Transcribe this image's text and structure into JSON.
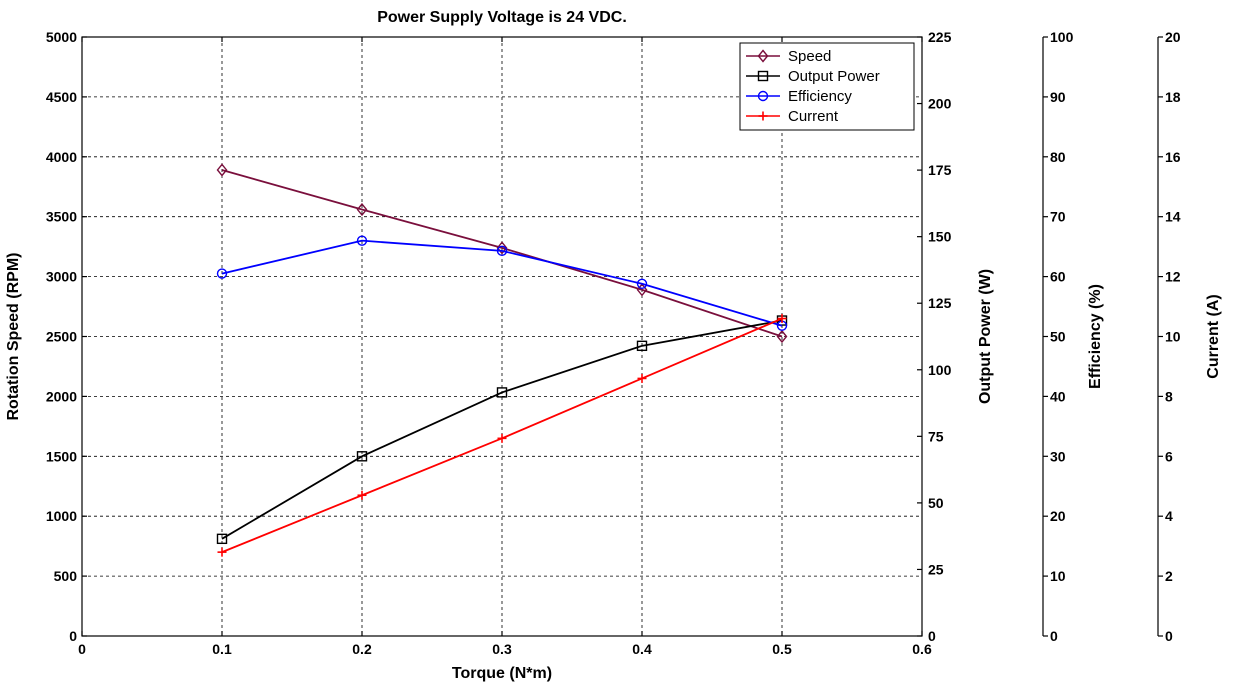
{
  "chart_data": {
    "type": "line",
    "title": "Power Supply Voltage is 24 VDC.",
    "xlabel": "Torque (N*m)",
    "xlim": [
      0,
      0.6
    ],
    "xticks": [
      0,
      0.1,
      0.2,
      0.3,
      0.4,
      0.5,
      0.6
    ],
    "xtick_labels": [
      "0",
      "0.1",
      "0.2",
      "0.3",
      "0.4",
      "0.5",
      "0.6"
    ],
    "grid": true,
    "legend_position": "top-right",
    "axes": [
      {
        "id": "speed",
        "label": "Rotation Speed (RPM)",
        "side": "left",
        "range": [
          0,
          5000
        ],
        "ticks": [
          "0",
          "500",
          "1000",
          "1500",
          "2000",
          "2500",
          "3000",
          "3500",
          "4000",
          "4500",
          "5000"
        ]
      },
      {
        "id": "power",
        "label": "Output Power (W)",
        "side": "right",
        "range": [
          0,
          225
        ],
        "ticks": [
          "0",
          "25",
          "50",
          "75",
          "100",
          "125",
          "150",
          "175",
          "200",
          "225"
        ]
      },
      {
        "id": "efficiency",
        "label": "Efficiency (%)",
        "side": "right",
        "range": [
          0,
          100
        ],
        "ticks": [
          "0",
          "10",
          "20",
          "30",
          "40",
          "50",
          "60",
          "70",
          "80",
          "90",
          "100"
        ]
      },
      {
        "id": "current",
        "label": "Current (A)",
        "side": "right",
        "range": [
          0,
          20
        ],
        "ticks": [
          "0",
          "2",
          "4",
          "6",
          "8",
          "10",
          "12",
          "14",
          "16",
          "18",
          "20"
        ]
      }
    ],
    "x": [
      0.1,
      0.2,
      0.3,
      0.4,
      0.5
    ],
    "series": [
      {
        "name": "Speed",
        "axis": "speed",
        "color": "#7a0f3c",
        "marker": "diamond",
        "values": [
          3890,
          3560,
          3240,
          2890,
          2500
        ]
      },
      {
        "name": "Output Power",
        "axis": "power",
        "color": "#000000",
        "marker": "square",
        "values": [
          36.5,
          67.5,
          91.5,
          109,
          118.5
        ]
      },
      {
        "name": "Efficiency",
        "axis": "efficiency",
        "color": "#0000ff",
        "marker": "circle",
        "values": [
          60.5,
          66,
          64.3,
          58.8,
          51.8
        ]
      },
      {
        "name": "Current",
        "axis": "current",
        "color": "#ff0000",
        "marker": "plus",
        "values": [
          2.8,
          4.7,
          6.6,
          8.6,
          10.6
        ]
      }
    ]
  }
}
